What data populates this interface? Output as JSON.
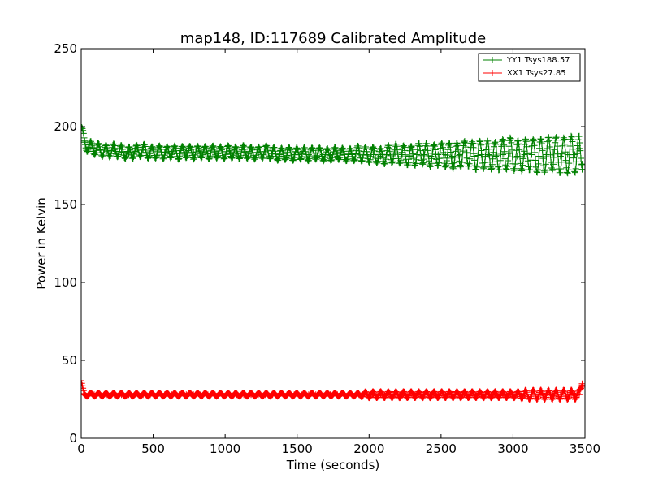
{
  "chart_data": {
    "type": "line",
    "title": "map148, ID:117689 Calibrated Amplitude",
    "xlabel": "Time (seconds)",
    "ylabel": "Power in Kelvin",
    "xlim": [
      0,
      3500
    ],
    "ylim": [
      0,
      250
    ],
    "xticks": [
      0,
      500,
      1000,
      1500,
      2000,
      2500,
      3000,
      3500
    ],
    "yticks": [
      0,
      50,
      100,
      150,
      200,
      250
    ],
    "xtick_labels": [
      "0",
      "500",
      "1000",
      "1500",
      "2000",
      "2500",
      "3000",
      "3500"
    ],
    "ytick_labels": [
      "0",
      "50",
      "100",
      "150",
      "200",
      "250"
    ],
    "grid": false,
    "legend_position": "top-right",
    "marker": "plus",
    "series": [
      {
        "name": "YY1 Tsys188.57",
        "color": "#008000",
        "x": [
          0,
          20,
          50,
          90,
          130,
          180,
          230,
          280,
          330,
          380,
          430,
          480,
          530,
          580,
          630,
          680,
          730,
          780,
          830,
          880,
          930,
          980,
          1030,
          1080,
          1130,
          1180,
          1230,
          1280,
          1330,
          1380,
          1430,
          1480,
          1530,
          1580,
          1630,
          1680,
          1730,
          1780,
          1830,
          1880,
          1930,
          1980,
          2030,
          2080,
          2130,
          2180,
          2230,
          2280,
          2330,
          2380,
          2430,
          2480,
          2530,
          2580,
          2630,
          2680,
          2730,
          2780,
          2830,
          2880,
          2930,
          2980,
          3030,
          3080,
          3130,
          3180,
          3230,
          3280,
          3330,
          3380,
          3430,
          3460,
          3480
        ],
        "y": [
          200,
          190,
          187,
          186,
          185,
          184,
          185,
          184,
          183,
          184,
          185,
          183,
          184,
          183,
          184,
          183,
          184,
          183,
          184,
          183,
          184,
          183,
          184,
          183,
          184,
          183,
          183,
          184,
          183,
          182,
          183,
          182,
          183,
          182,
          183,
          182,
          182,
          183,
          182,
          182,
          183,
          182,
          182,
          181,
          182,
          183,
          182,
          181,
          182,
          183,
          181,
          182,
          182,
          181,
          182,
          183,
          181,
          182,
          182,
          181,
          182,
          183,
          181,
          182,
          182,
          181,
          182,
          183,
          181,
          182,
          182,
          186,
          176
        ],
        "amplitude": [
          3,
          4,
          4,
          4,
          4,
          4,
          4,
          4,
          4,
          4,
          4,
          4,
          4,
          4,
          4,
          4,
          4,
          4,
          4,
          4,
          4,
          4,
          4,
          4,
          4,
          4,
          4,
          4,
          4,
          4,
          4,
          4,
          4,
          4,
          4,
          4,
          4,
          4,
          4,
          4,
          5,
          5,
          5,
          5,
          6,
          6,
          6,
          6,
          7,
          7,
          7,
          7,
          8,
          8,
          8,
          8,
          9,
          9,
          9,
          9,
          10,
          10,
          10,
          10,
          10,
          11,
          11,
          11,
          11,
          12,
          12,
          8,
          4
        ]
      },
      {
        "name": "XX1 Tsys27.85",
        "color": "#ff0000",
        "x": [
          0,
          20,
          50,
          90,
          130,
          180,
          230,
          280,
          330,
          380,
          430,
          480,
          530,
          580,
          630,
          680,
          730,
          780,
          830,
          880,
          930,
          980,
          1030,
          1080,
          1130,
          1180,
          1230,
          1280,
          1330,
          1380,
          1430,
          1480,
          1530,
          1580,
          1630,
          1680,
          1730,
          1780,
          1830,
          1880,
          1930,
          1980,
          2030,
          2080,
          2130,
          2180,
          2230,
          2280,
          2330,
          2380,
          2430,
          2480,
          2530,
          2580,
          2630,
          2680,
          2730,
          2780,
          2830,
          2880,
          2930,
          2980,
          3030,
          3080,
          3130,
          3180,
          3230,
          3280,
          3330,
          3380,
          3430,
          3460,
          3480
        ],
        "y": [
          37,
          28,
          28,
          28,
          28,
          28,
          28,
          28,
          28,
          28,
          28,
          28,
          28,
          28,
          28,
          28,
          28,
          28,
          28,
          28,
          28,
          28,
          28,
          28,
          28,
          28,
          28,
          28,
          28,
          28,
          28,
          28,
          28,
          28,
          28,
          28,
          28,
          28,
          28,
          28,
          28,
          28,
          28,
          28,
          28,
          28,
          28,
          28,
          28,
          28,
          28,
          28,
          28,
          28,
          28,
          28,
          28,
          28,
          28,
          28,
          28,
          28,
          28,
          28,
          28,
          28,
          28,
          28,
          28,
          28,
          28,
          28,
          35
        ],
        "amplitude": [
          0,
          1,
          1,
          1,
          1,
          1,
          1,
          1,
          1,
          1,
          1,
          1,
          1,
          1,
          1,
          1,
          1,
          1,
          1,
          1,
          1,
          1,
          1,
          1,
          1,
          1,
          1,
          1,
          1,
          1,
          1,
          1,
          1,
          1,
          1,
          1,
          1,
          1,
          1,
          1,
          1,
          2,
          2,
          2,
          2,
          2,
          2,
          2,
          2,
          2,
          2,
          2,
          2,
          2,
          2,
          2,
          2,
          2,
          2,
          2,
          2,
          2,
          2,
          3,
          3,
          3,
          3,
          3,
          3,
          3,
          3,
          3,
          1
        ]
      }
    ]
  }
}
